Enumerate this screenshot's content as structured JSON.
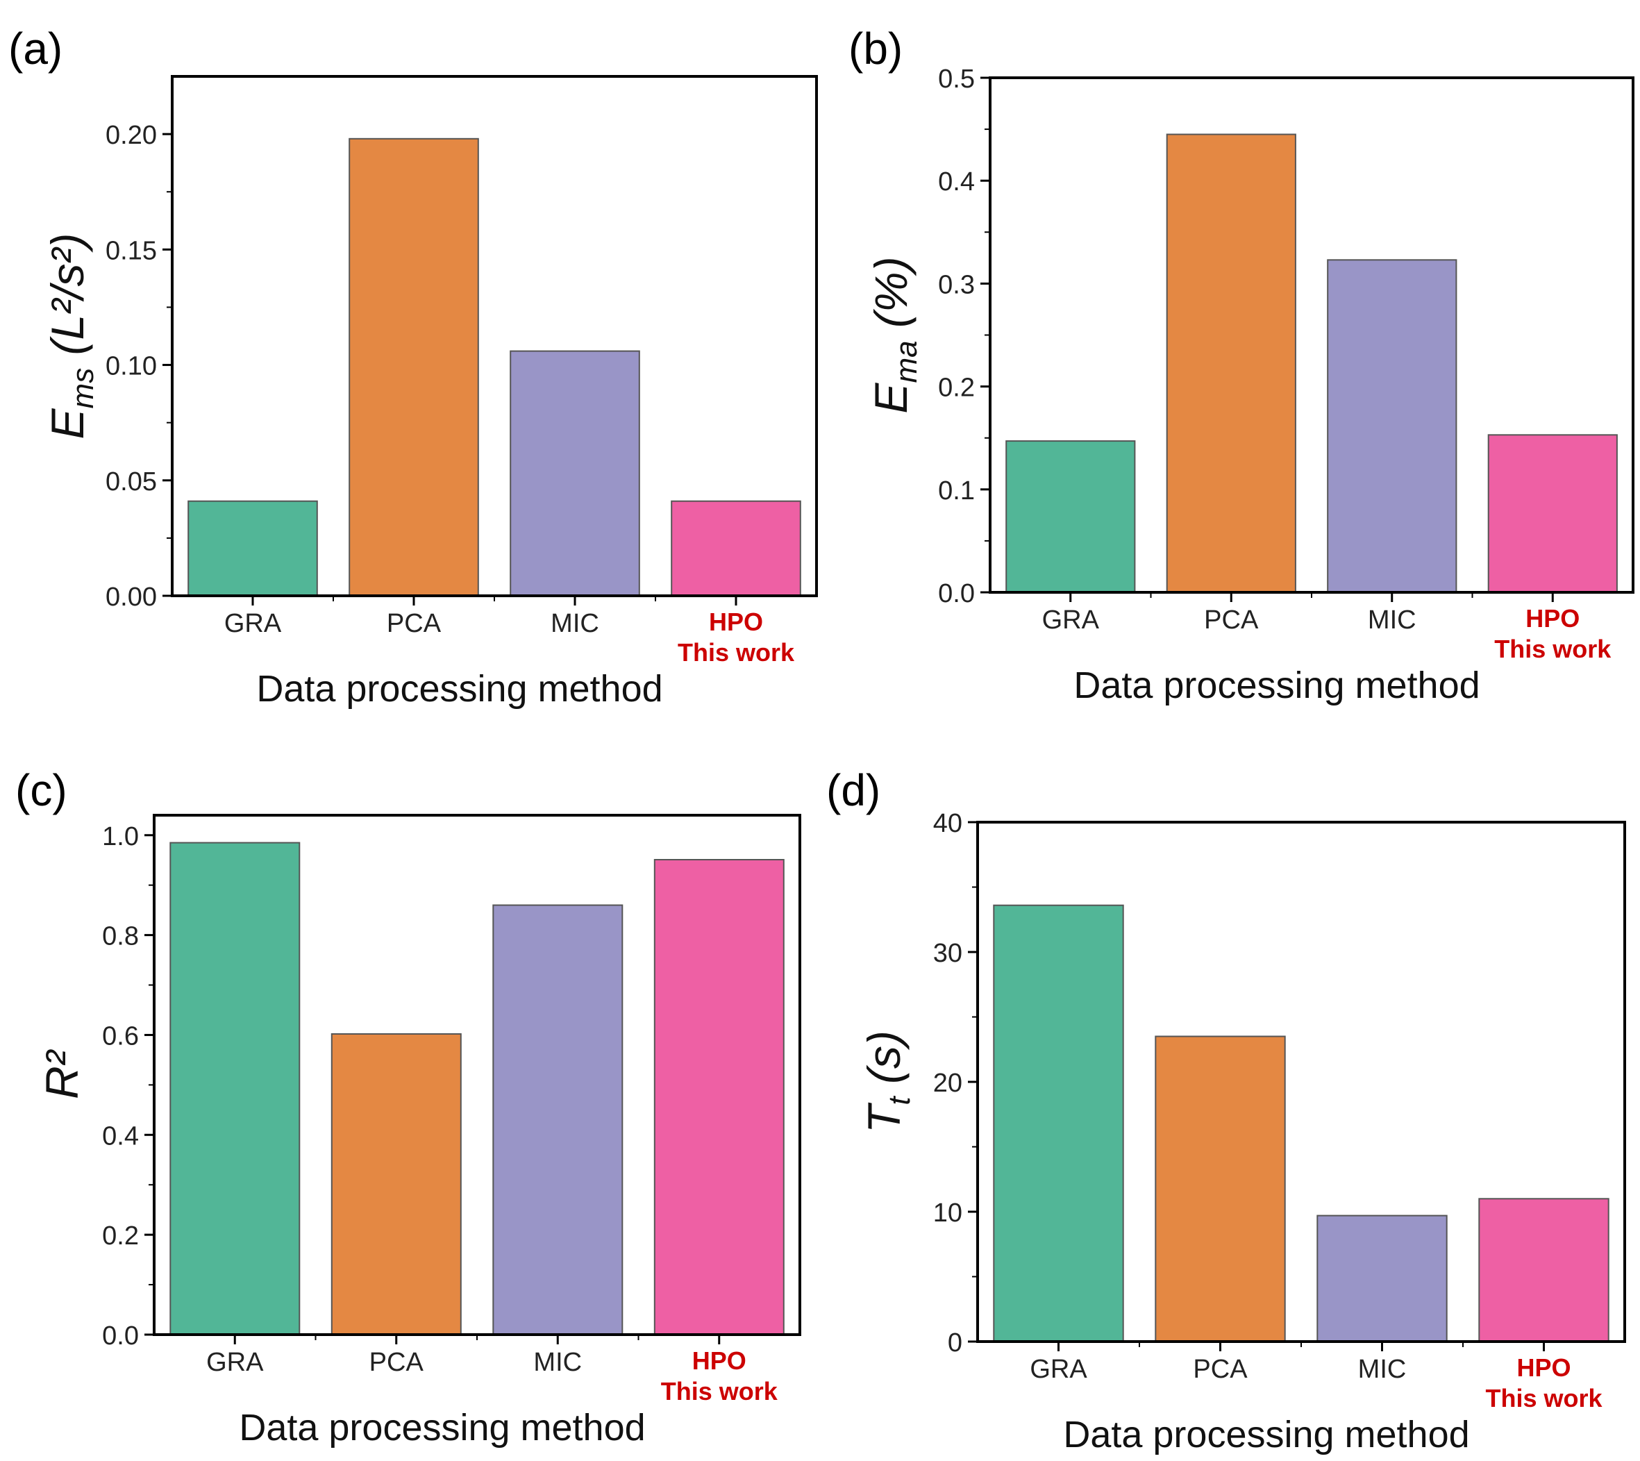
{
  "panel_labels": [
    "(a)",
    "(b)",
    "(c)",
    "(d)"
  ],
  "colors": {
    "GRA": "#52b697",
    "PCA": "#e48843",
    "MIC": "#9995c7",
    "HPO": "#ee60a4",
    "highlight_text": "#cc0000",
    "axis": "#000000"
  },
  "chart_data": [
    {
      "type": "bar",
      "panel": "(a)",
      "categories": [
        "GRA",
        "PCA",
        "MIC",
        "HPO"
      ],
      "highlight_sublabel": "This work",
      "values": [
        0.041,
        0.198,
        0.106,
        0.041
      ],
      "xlabel": "Data processing method",
      "ylabel": {
        "main": "E",
        "sub": "ms",
        "unit": " (L²/s²)"
      },
      "ylim": [
        0,
        0.225
      ],
      "yticks": [
        0.0,
        0.05,
        0.1,
        0.15,
        0.2
      ],
      "ytick_labels": [
        "0.00",
        "0.05",
        "0.10",
        "0.15",
        "0.20"
      ],
      "grid": false,
      "legend": "none"
    },
    {
      "type": "bar",
      "panel": "(b)",
      "categories": [
        "GRA",
        "PCA",
        "MIC",
        "HPO"
      ],
      "highlight_sublabel": "This work",
      "values": [
        0.147,
        0.445,
        0.323,
        0.153
      ],
      "xlabel": "Data processing method",
      "ylabel": {
        "main": "E",
        "sub": "ma",
        "unit": " (%)"
      },
      "ylim": [
        0,
        0.5
      ],
      "yticks": [
        0.0,
        0.1,
        0.2,
        0.3,
        0.4,
        0.5
      ],
      "ytick_labels": [
        "0.0",
        "0.1",
        "0.2",
        "0.3",
        "0.4",
        "0.5"
      ],
      "grid": false,
      "legend": "none"
    },
    {
      "type": "bar",
      "panel": "(c)",
      "categories": [
        "GRA",
        "PCA",
        "MIC",
        "HPO"
      ],
      "highlight_sublabel": "This work",
      "values": [
        0.985,
        0.602,
        0.86,
        0.951
      ],
      "xlabel": "Data processing method",
      "ylabel": {
        "main": "R²",
        "sub": "",
        "unit": ""
      },
      "ylim": [
        0,
        1.04
      ],
      "yticks": [
        0.0,
        0.2,
        0.4,
        0.6,
        0.8,
        1.0
      ],
      "ytick_labels": [
        "0.0",
        "0.2",
        "0.4",
        "0.6",
        "0.8",
        "1.0"
      ],
      "grid": false,
      "legend": "none"
    },
    {
      "type": "bar",
      "panel": "(d)",
      "categories": [
        "GRA",
        "PCA",
        "MIC",
        "HPO"
      ],
      "highlight_sublabel": "This work",
      "values": [
        33.6,
        23.5,
        9.7,
        11.0
      ],
      "xlabel": "Data processing method",
      "ylabel": {
        "main": "T",
        "sub": "t",
        "unit": " (s)"
      },
      "ylim": [
        0,
        40
      ],
      "yticks": [
        0,
        10,
        20,
        30,
        40
      ],
      "ytick_labels": [
        "0",
        "10",
        "20",
        "30",
        "40"
      ],
      "grid": false,
      "legend": "none"
    }
  ]
}
